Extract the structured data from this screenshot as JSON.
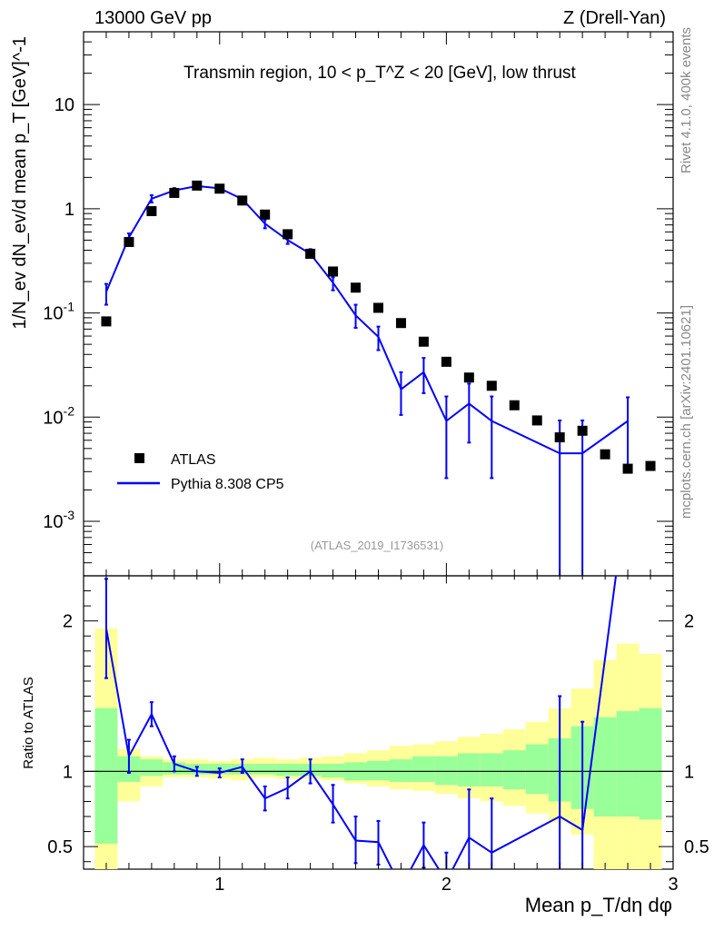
{
  "header": {
    "left": "13000 GeV pp",
    "right": "Z (Drell-Yan)"
  },
  "side_labels": {
    "rivet": "Rivet 4.1.0,  400k events",
    "mcplots": "mcplots.cern.ch [arXiv:2401.10621]"
  },
  "chart_data": {
    "type": "scatter",
    "title": "Transmin region, 10 < p_T^Z < 20 [GeV], low thrust",
    "analysis_id": "(ATLAS_2019_I1736531)",
    "xlabel": "Mean p_T/dη dφ",
    "ylabel": "1/N_ev dN_ev/d mean p_T [GeV]^-1",
    "ratio_ylabel": "Ratio to ATLAS",
    "xlim": [
      0.4,
      3.0
    ],
    "ylim": [
      0.0003,
      50
    ],
    "yscale": "log",
    "ratio_ylim": [
      0.35,
      2.3
    ],
    "x_ticks": [
      "1",
      "2",
      "3"
    ],
    "y_ticks": [
      "10^-3",
      "10^-2",
      "10^-1",
      "1",
      "10"
    ],
    "ratio_ticks": [
      "0.5",
      "1",
      "2"
    ],
    "legend": [
      {
        "label": "ATLAS",
        "marker": "square",
        "color": "#000000"
      },
      {
        "label": "Pythia 8.308 CP5",
        "marker": "line",
        "color": "#0000ff"
      }
    ],
    "bin_edges": [
      0.45,
      0.55,
      0.65,
      0.75,
      0.85,
      0.95,
      1.05,
      1.15,
      1.25,
      1.35,
      1.45,
      1.55,
      1.65,
      1.75,
      1.85,
      1.95,
      2.05,
      2.15,
      2.25,
      2.35,
      2.45,
      2.55,
      2.65,
      2.75,
      2.85,
      2.95
    ],
    "atlas": {
      "x": [
        0.5,
        0.6,
        0.7,
        0.8,
        0.9,
        1.0,
        1.1,
        1.2,
        1.3,
        1.4,
        1.5,
        1.6,
        1.7,
        1.8,
        1.9,
        2.0,
        2.1,
        2.2,
        2.3,
        2.4,
        2.5,
        2.6,
        2.7,
        2.8,
        2.9
      ],
      "y": [
        0.083,
        0.48,
        0.95,
        1.42,
        1.67,
        1.56,
        1.2,
        0.88,
        0.57,
        0.37,
        0.25,
        0.175,
        0.112,
        0.08,
        0.053,
        0.034,
        0.024,
        0.02,
        0.013,
        0.0093,
        0.0064,
        0.0074,
        0.0044,
        0.0032,
        0.0034
      ]
    },
    "pythia": {
      "x": [
        0.5,
        0.6,
        0.7,
        0.8,
        0.9,
        1.0,
        1.1,
        1.2,
        1.3,
        1.4,
        1.5,
        1.6,
        1.7,
        1.8,
        1.9,
        2.0,
        2.1,
        2.2,
        2.5,
        2.6,
        2.8
      ],
      "y": [
        0.16,
        0.53,
        1.25,
        1.5,
        1.65,
        1.57,
        1.24,
        0.72,
        0.5,
        0.37,
        0.195,
        0.095,
        0.059,
        0.0185,
        0.027,
        0.0092,
        0.0135,
        0.0092,
        0.0045,
        0.0045,
        0.0092
      ],
      "yerr_lo": [
        0.12,
        0.47,
        1.15,
        1.42,
        1.6,
        1.52,
        1.19,
        0.65,
        0.46,
        0.34,
        0.165,
        0.072,
        0.044,
        0.0105,
        0.017,
        0.0026,
        0.0057,
        0.0026,
        0.0002,
        0.0002,
        0.0031
      ],
      "yerr_hi": [
        0.19,
        0.58,
        1.35,
        1.58,
        1.72,
        1.62,
        1.3,
        0.79,
        0.55,
        0.41,
        0.22,
        0.12,
        0.074,
        0.027,
        0.037,
        0.0158,
        0.021,
        0.0158,
        0.0093,
        0.0093,
        0.0155
      ]
    },
    "ratio": {
      "x": [
        0.5,
        0.6,
        0.7,
        0.8,
        0.9,
        1.0,
        1.1,
        1.2,
        1.3,
        1.4,
        1.5,
        1.6,
        1.7,
        1.8,
        1.9,
        2.0,
        2.1,
        2.2,
        2.5,
        2.6,
        2.8
      ],
      "y": [
        1.95,
        1.1,
        1.38,
        1.05,
        1.0,
        0.99,
        1.03,
        0.82,
        0.89,
        1.0,
        0.78,
        0.54,
        0.53,
        0.23,
        0.51,
        0.27,
        0.56,
        0.46,
        0.7,
        0.61,
        2.9
      ],
      "lo": [
        1.62,
        0.99,
        1.3,
        1.0,
        0.97,
        0.96,
        0.99,
        0.74,
        0.82,
        0.92,
        0.66,
        0.39,
        0.38,
        0.13,
        0.36,
        0.08,
        0.24,
        0.13,
        0.03,
        0.03,
        2.5
      ],
      "hi": [
        2.28,
        1.21,
        1.46,
        1.1,
        1.03,
        1.02,
        1.08,
        0.9,
        0.96,
        1.08,
        0.91,
        0.7,
        0.67,
        0.34,
        0.66,
        0.46,
        0.88,
        0.82,
        1.5,
        1.33,
        3.3
      ]
    },
    "bands": {
      "green_lo": [
        0.52,
        0.93,
        0.97,
        0.98,
        0.98,
        0.98,
        0.98,
        0.98,
        0.97,
        0.97,
        0.96,
        0.94,
        0.94,
        0.93,
        0.93,
        0.91,
        0.9,
        0.9,
        0.88,
        0.85,
        0.8,
        0.75,
        0.7,
        0.7,
        0.68
      ],
      "green_hi": [
        1.42,
        1.1,
        1.08,
        1.06,
        1.05,
        1.05,
        1.05,
        1.05,
        1.05,
        1.05,
        1.05,
        1.06,
        1.07,
        1.08,
        1.1,
        1.1,
        1.12,
        1.12,
        1.14,
        1.18,
        1.22,
        1.3,
        1.36,
        1.4,
        1.42
      ],
      "yellow_lo": [
        0.35,
        0.8,
        0.9,
        0.96,
        0.96,
        0.95,
        0.94,
        0.96,
        0.95,
        0.95,
        0.94,
        0.92,
        0.9,
        0.88,
        0.87,
        0.85,
        0.82,
        0.8,
        0.77,
        0.72,
        0.66,
        0.58,
        0.35,
        0.35,
        0.35
      ],
      "yellow_hi": [
        1.95,
        1.15,
        1.1,
        1.08,
        1.08,
        1.07,
        1.08,
        1.09,
        1.08,
        1.09,
        1.1,
        1.12,
        1.14,
        1.17,
        1.18,
        1.2,
        1.23,
        1.25,
        1.28,
        1.33,
        1.42,
        1.55,
        1.74,
        1.85,
        1.78
      ]
    }
  }
}
